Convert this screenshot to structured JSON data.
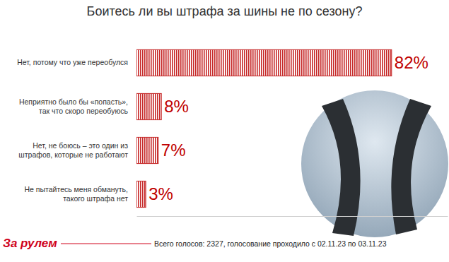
{
  "chart_data": {
    "type": "bar",
    "orientation": "horizontal",
    "title": "Боитесь ли вы штрафа за шины не по сезону?",
    "categories": [
      "Нет, потому что уже переобулся",
      "Неприятно было бы «попасть»,\nтак что скоро переобуюсь",
      "Нет, не боюсь – это один из\nштрафов, которые не работают",
      "Не пытайтесь меня обмануть,\nтакого штрафа нет"
    ],
    "values": [
      82,
      8,
      7,
      3
    ],
    "value_labels": [
      "82%",
      "8%",
      "7%",
      "3%"
    ],
    "data_labels": true,
    "color": "#c62828",
    "xlim": [
      0,
      100
    ],
    "tick_labels": false,
    "grid": false,
    "logo": "За рулем",
    "note": "Всего голосов: 2327, голосование проходило с 02.11.23 по 03.11.23"
  }
}
